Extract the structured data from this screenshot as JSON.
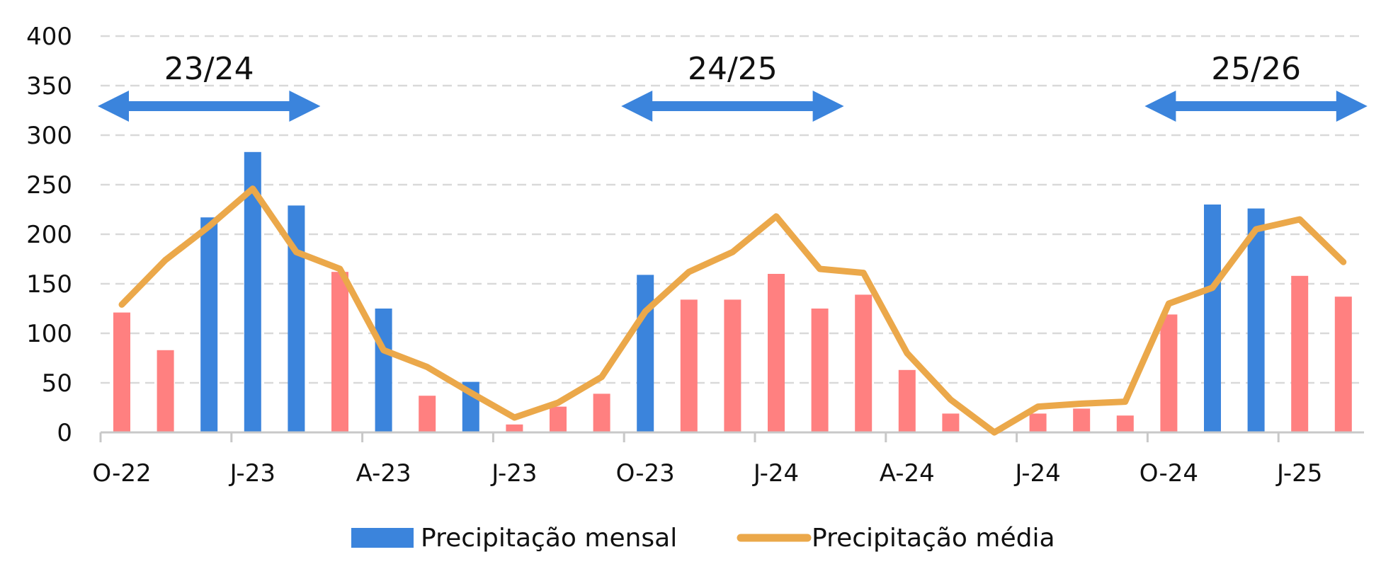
{
  "chart_data": {
    "type": "bar",
    "title": "",
    "xlabel": "",
    "ylabel": "",
    "ylim": [
      0,
      400
    ],
    "yticks": [
      "0",
      "50",
      "100",
      "150",
      "200",
      "250",
      "300",
      "350",
      "400"
    ],
    "x_tick_labels": [
      "O-22",
      "J-23",
      "A-23",
      "J-23",
      "O-23",
      "J-24",
      "A-24",
      "J-24",
      "O-24",
      "J-25"
    ],
    "grid": "horizontal dashed",
    "legend_position": "bottom-center",
    "colors": {
      "above_average_bar": "#3b84dc",
      "below_average_bar": "#ff8080",
      "average_line": "#eba84a",
      "season_arrow": "#3b84dc",
      "grid": "#d9d9d9",
      "axis": "#c8c8c8"
    },
    "series": [
      {
        "name": "Precipitação mensal",
        "kind": "bar",
        "values": [
          121,
          83,
          217,
          283,
          229,
          162,
          125,
          37,
          51,
          8,
          26,
          39,
          159,
          134,
          134,
          160,
          125,
          139,
          63,
          19,
          0,
          19,
          24,
          17,
          119,
          230,
          226,
          158,
          137
        ]
      },
      {
        "name": "Precipitação média",
        "kind": "line",
        "values": [
          129,
          174,
          208,
          246,
          182,
          165,
          83,
          66,
          40,
          15,
          30,
          56,
          122,
          162,
          182,
          218,
          165,
          161,
          80,
          33,
          0,
          26,
          29,
          31,
          130,
          146,
          205,
          215,
          172
        ]
      }
    ],
    "annotations": [
      {
        "label": "23/24",
        "from_index": 0,
        "to_index": 4
      },
      {
        "label": "24/25",
        "from_index": 12,
        "to_index": 16
      },
      {
        "label": "25/26",
        "from_index": 24,
        "to_index": 28
      }
    ]
  }
}
